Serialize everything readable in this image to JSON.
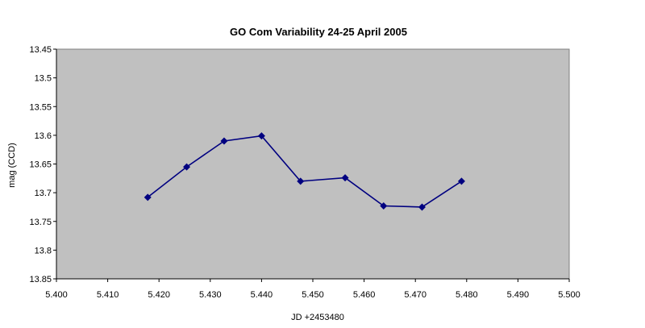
{
  "chart_data": {
    "type": "line",
    "title": "GO Com  Variability 24-25 April 2005",
    "xlabel": "JD +2453480",
    "ylabel": "mag (CCD)",
    "xlim": [
      5.4,
      5.5
    ],
    "ylim": [
      13.45,
      13.85
    ],
    "y_inverted": true,
    "grid": false,
    "legend": "none",
    "x_ticks": [
      "5.400",
      "5.410",
      "5.420",
      "5.430",
      "5.440",
      "5.450",
      "5.460",
      "5.470",
      "5.480",
      "5.490",
      "5.500"
    ],
    "y_ticks": [
      "13.45",
      "13.5",
      "13.55",
      "13.6",
      "13.65",
      "13.7",
      "13.75",
      "13.8",
      "13.85"
    ],
    "colors": {
      "plot_area": "#c0c0c0",
      "series": "#000080"
    },
    "series": [
      {
        "x": [
          5.4178,
          5.4254,
          5.4327,
          5.44,
          5.4476,
          5.4563,
          5.4638,
          5.4713,
          5.479
        ],
        "y": [
          13.708,
          13.655,
          13.61,
          13.601,
          13.68,
          13.674,
          13.723,
          13.725,
          13.68
        ],
        "marker": "diamond"
      }
    ]
  }
}
